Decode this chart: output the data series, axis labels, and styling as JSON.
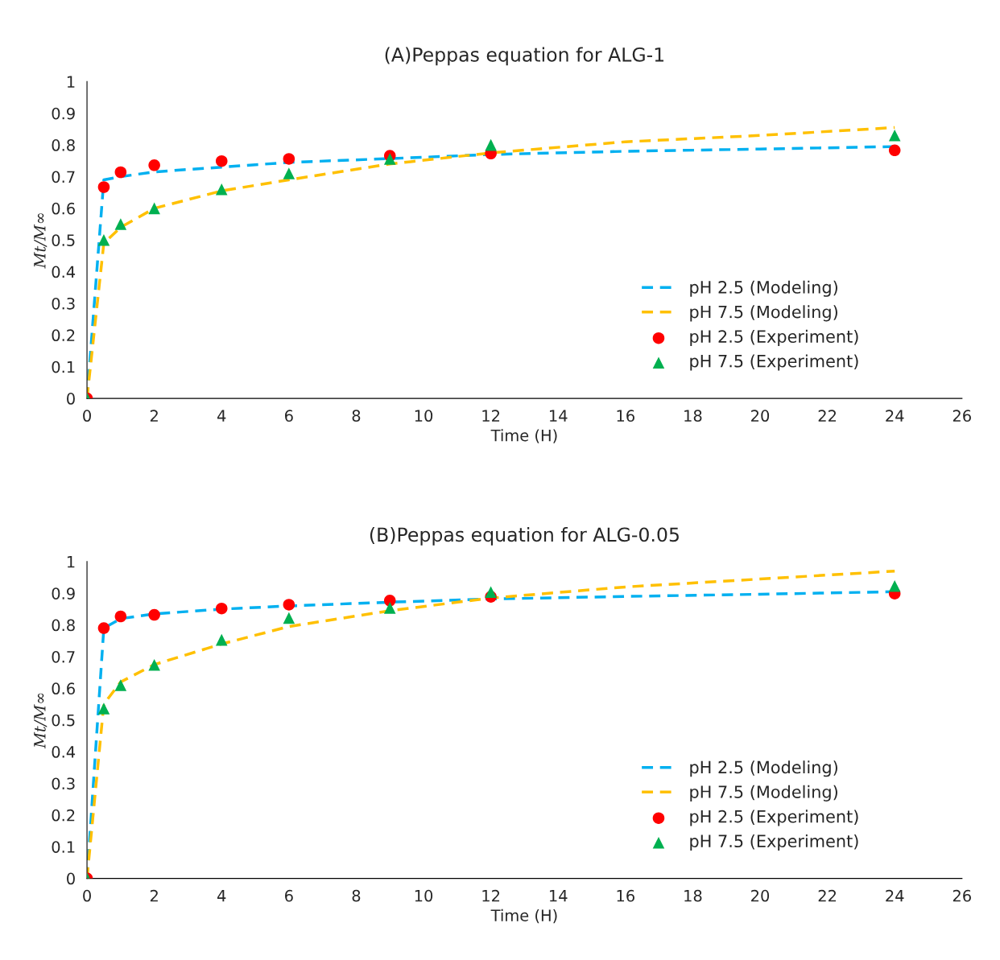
{
  "chart_data": [
    {
      "type": "line",
      "title": "(A)Peppas equation for ALG-1",
      "xlabel": "Time (H)",
      "ylabel": "Mt/M∞",
      "xlim": [
        0,
        26
      ],
      "xticks": [
        0,
        2,
        4,
        6,
        8,
        10,
        12,
        14,
        16,
        18,
        20,
        22,
        24,
        26
      ],
      "ylim": [
        0,
        1
      ],
      "yticks": [
        0,
        0.1,
        0.2,
        0.3,
        0.4,
        0.5,
        0.6,
        0.7,
        0.8,
        0.9,
        1
      ],
      "grid": false,
      "legend": "bottom right",
      "series": [
        {
          "name": "pH 2.5 (Modeling)",
          "line_style": "dashed",
          "marker": "none",
          "color": "#00b0f0",
          "x": [
            0,
            0.5,
            1,
            2,
            4,
            6,
            9,
            12,
            16,
            20,
            24
          ],
          "values": [
            0,
            0.69,
            0.7,
            0.715,
            0.73,
            0.745,
            0.757,
            0.77,
            0.78,
            0.787,
            0.795
          ]
        },
        {
          "name": "pH 7.5 (Modeling)",
          "line_style": "dashed",
          "marker": "none",
          "color": "#ffc000",
          "x": [
            0,
            0.5,
            1,
            2,
            4,
            6,
            9,
            12,
            16,
            20,
            24
          ],
          "values": [
            0,
            0.49,
            0.54,
            0.6,
            0.655,
            0.69,
            0.74,
            0.775,
            0.81,
            0.83,
            0.855
          ]
        },
        {
          "name": "pH 2.5 (Experiment)",
          "type": "scatter",
          "marker": "circle",
          "color": "#ff0000",
          "x": [
            0,
            0.5,
            1,
            2,
            4,
            6,
            9,
            12,
            24
          ],
          "values": [
            0,
            0.667,
            0.714,
            0.736,
            0.749,
            0.756,
            0.766,
            0.773,
            0.783
          ]
        },
        {
          "name": "pH 7.5 (Experiment)",
          "type": "scatter",
          "marker": "triangle",
          "color": "#00b050",
          "x": [
            0,
            0.5,
            1,
            2,
            4,
            6,
            9,
            12,
            24
          ],
          "values": [
            0,
            0.5,
            0.55,
            0.6,
            0.66,
            0.71,
            0.756,
            0.8,
            0.83
          ]
        }
      ]
    },
    {
      "type": "line",
      "title": "(B)Peppas equation for ALG-0.05",
      "xlabel": "Time (H)",
      "ylabel": "Mt/M∞",
      "xlim": [
        0,
        26
      ],
      "xticks": [
        0,
        2,
        4,
        6,
        8,
        10,
        12,
        14,
        16,
        18,
        20,
        22,
        24,
        26
      ],
      "ylim": [
        0,
        1
      ],
      "yticks": [
        0,
        0.1,
        0.2,
        0.3,
        0.4,
        0.5,
        0.6,
        0.7,
        0.8,
        0.9,
        1
      ],
      "grid": false,
      "legend": "bottom right",
      "series": [
        {
          "name": "pH 2.5 (Modeling)",
          "line_style": "dashed",
          "marker": "none",
          "color": "#00b0f0",
          "x": [
            0,
            0.5,
            1,
            2,
            4,
            6,
            9,
            12,
            16,
            20,
            24
          ],
          "values": [
            0,
            0.79,
            0.82,
            0.835,
            0.85,
            0.86,
            0.872,
            0.882,
            0.89,
            0.897,
            0.905
          ]
        },
        {
          "name": "pH 7.5 (Modeling)",
          "line_style": "dashed",
          "marker": "none",
          "color": "#ffc000",
          "x": [
            0,
            0.5,
            1,
            2,
            4,
            6,
            9,
            12,
            16,
            20,
            24
          ],
          "values": [
            0,
            0.55,
            0.62,
            0.675,
            0.74,
            0.795,
            0.845,
            0.885,
            0.92,
            0.945,
            0.97
          ]
        },
        {
          "name": "pH 2.5 (Experiment)",
          "type": "scatter",
          "marker": "circle",
          "color": "#ff0000",
          "x": [
            0,
            0.5,
            1,
            2,
            4,
            6,
            9,
            12,
            24
          ],
          "values": [
            0,
            0.79,
            0.827,
            0.832,
            0.852,
            0.864,
            0.877,
            0.889,
            0.899
          ]
        },
        {
          "name": "pH 7.5 (Experiment)",
          "type": "scatter",
          "marker": "triangle",
          "color": "#00b050",
          "x": [
            0,
            0.5,
            1,
            2,
            4,
            6,
            9,
            12,
            24
          ],
          "values": [
            0,
            0.536,
            0.61,
            0.674,
            0.753,
            0.822,
            0.854,
            0.904,
            0.923
          ]
        }
      ]
    }
  ]
}
